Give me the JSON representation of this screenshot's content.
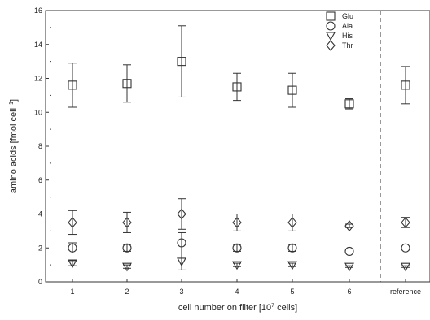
{
  "chart_data": {
    "type": "scatter",
    "xlabel": "cell number on filter [10",
    "xlabel_sup": "7",
    "xlabel_end": " cells]",
    "ylabel": "amino acids [fmol cell",
    "ylabel_sup": "−1",
    "ylabel_end": "]",
    "ylim": [
      0,
      16
    ],
    "yticks": [
      0,
      2,
      4,
      6,
      8,
      10,
      12,
      14,
      16
    ],
    "categories": [
      "1",
      "2",
      "3",
      "4",
      "5",
      "6",
      "reference"
    ],
    "divider_after_category": "6",
    "grid": false,
    "legend_position": "top-right",
    "series": [
      {
        "name": "Glu",
        "marker": "square",
        "values": [
          11.6,
          11.7,
          13.0,
          11.5,
          11.3,
          10.5,
          11.6
        ],
        "errors": [
          1.3,
          1.1,
          2.1,
          0.8,
          1.0,
          0.3,
          1.1
        ]
      },
      {
        "name": "Ala",
        "marker": "circle",
        "values": [
          2.0,
          2.0,
          2.3,
          2.0,
          2.0,
          1.8,
          2.0
        ],
        "errors": [
          0.3,
          0.2,
          0.6,
          0.2,
          0.2,
          0.0,
          0.0
        ]
      },
      {
        "name": "His",
        "marker": "triangle-down",
        "values": [
          1.1,
          0.9,
          1.2,
          1.0,
          1.0,
          0.9,
          0.9
        ],
        "errors": [
          0.15,
          0.1,
          0.5,
          0.1,
          0.1,
          0.05,
          0.05
        ]
      },
      {
        "name": "Thr",
        "marker": "diamond",
        "values": [
          3.5,
          3.5,
          4.0,
          3.5,
          3.5,
          3.3,
          3.5
        ],
        "errors": [
          0.7,
          0.6,
          0.9,
          0.5,
          0.5,
          0.1,
          0.3
        ]
      }
    ]
  }
}
